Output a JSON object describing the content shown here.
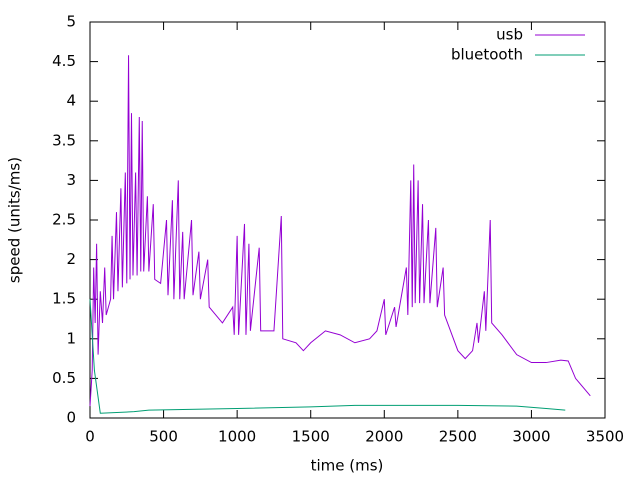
{
  "chart_data": {
    "type": "line",
    "xlabel": "time (ms)",
    "ylabel": "speed (units/ms)",
    "xlim": [
      0,
      3500
    ],
    "xticks": [
      0,
      500,
      1000,
      1500,
      2000,
      2500,
      3000,
      3500
    ],
    "ylim": [
      0,
      5
    ],
    "yticks": [
      0,
      0.5,
      1,
      1.5,
      2,
      2.5,
      3,
      3.5,
      4,
      4.5,
      5
    ],
    "legend": "top-right",
    "series": [
      {
        "name": "usb",
        "color": "#9400d3",
        "x": [
          0,
          15,
          25,
          35,
          45,
          55,
          70,
          85,
          100,
          110,
          140,
          150,
          160,
          180,
          190,
          210,
          220,
          240,
          250,
          262,
          272,
          282,
          292,
          310,
          320,
          335,
          345,
          355,
          365,
          390,
          400,
          430,
          440,
          480,
          520,
          530,
          560,
          570,
          600,
          610,
          630,
          640,
          690,
          700,
          740,
          750,
          800,
          810,
          900,
          970,
          980,
          1000,
          1010,
          1050,
          1060,
          1080,
          1090,
          1150,
          1160,
          1250,
          1300,
          1310,
          1400,
          1450,
          1500,
          1600,
          1700,
          1800,
          1900,
          1950,
          2000,
          2010,
          2070,
          2080,
          2150,
          2160,
          2180,
          2190,
          2200,
          2210,
          2230,
          2240,
          2260,
          2270,
          2300,
          2310,
          2350,
          2360,
          2400,
          2410,
          2500,
          2550,
          2600,
          2630,
          2640,
          2680,
          2690,
          2720,
          2730,
          2800,
          2900,
          3000,
          3100,
          3200,
          3250,
          3300,
          3400
        ],
        "values": [
          0.15,
          0.6,
          1.9,
          1.2,
          2.2,
          0.8,
          1.6,
          1.2,
          1.9,
          1.3,
          1.5,
          2.3,
          1.5,
          2.6,
          1.6,
          2.9,
          1.65,
          3.1,
          1.7,
          4.58,
          1.75,
          3.85,
          1.8,
          3.1,
          1.8,
          3.8,
          1.85,
          3.75,
          1.85,
          2.8,
          1.85,
          2.7,
          1.75,
          1.7,
          2.5,
          1.55,
          2.75,
          1.5,
          3.0,
          1.5,
          2.35,
          1.5,
          2.5,
          1.55,
          2.1,
          1.5,
          2.0,
          1.4,
          1.2,
          1.4,
          1.05,
          2.3,
          1.05,
          2.45,
          1.05,
          2.2,
          1.1,
          2.15,
          1.1,
          1.1,
          2.55,
          1.0,
          0.95,
          0.85,
          0.95,
          1.1,
          1.05,
          0.95,
          1.0,
          1.1,
          1.5,
          1.05,
          1.4,
          1.15,
          1.9,
          1.3,
          3.0,
          1.4,
          3.2,
          1.45,
          3.0,
          1.45,
          2.7,
          1.45,
          2.5,
          1.45,
          2.4,
          1.4,
          1.9,
          1.3,
          0.85,
          0.75,
          0.85,
          1.2,
          0.95,
          1.6,
          1.1,
          2.5,
          1.2,
          1.05,
          0.8,
          0.7,
          0.7,
          0.73,
          0.72,
          0.5,
          0.28
        ]
      },
      {
        "name": "bluetooth",
        "color": "#009e73",
        "x": [
          0,
          30,
          70,
          300,
          400,
          1000,
          1500,
          1800,
          2500,
          2900,
          3100,
          3230
        ],
        "values": [
          1.5,
          0.6,
          0.06,
          0.08,
          0.1,
          0.12,
          0.14,
          0.16,
          0.16,
          0.15,
          0.12,
          0.1
        ]
      }
    ]
  }
}
